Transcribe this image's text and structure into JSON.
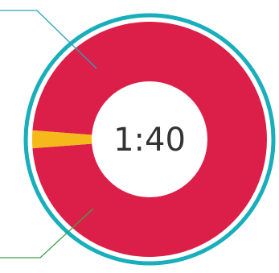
{
  "chart_data": {
    "type": "pie",
    "center_label": "1:40",
    "slices": [
      {
        "value": 40,
        "color": "#dc1f48"
      },
      {
        "value": 1,
        "color": "#f6b91a"
      }
    ]
  },
  "colors": {
    "ring": "#18aebb",
    "callout_top": "#2aa2b8",
    "callout_bottom": "#3aa34b",
    "hole": "#ffffff"
  }
}
